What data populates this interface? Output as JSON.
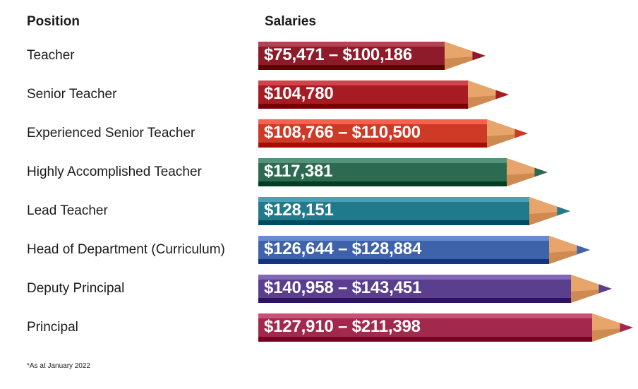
{
  "headers": {
    "position": "Position",
    "salaries": "Salaries"
  },
  "footnote": "*As at January 2022",
  "chart_data": {
    "type": "bar",
    "title": "",
    "categories": [
      "Teacher",
      "Senior Teacher",
      "Experienced Senior Teacher",
      "Highly Accomplished Teacher",
      "Lead Teacher",
      "Head of Department (Curriculum)",
      "Deputy Principal",
      "Principal"
    ],
    "labels": [
      "$75,471 – $100,186",
      "$104,780",
      "$108,766 – $110,500",
      "$117,381",
      "$128,151",
      "$126,644 – $128,884",
      "$140,958 – $143,451",
      "$127,910 – $211,398"
    ],
    "colors": [
      "#8e1b2a",
      "#a61c22",
      "#cf3a27",
      "#2d6a52",
      "#217a8c",
      "#3f63ab",
      "#5a3f8e",
      "#a3284d"
    ]
  }
}
